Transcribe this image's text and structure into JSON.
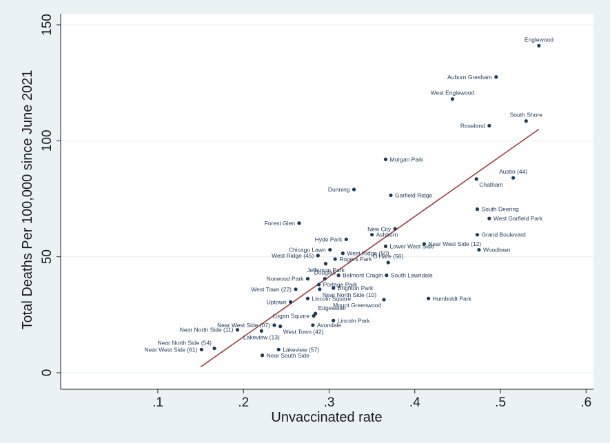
{
  "chart_data": {
    "type": "scatter",
    "xlabel": "Unvaccinated rate",
    "ylabel": "Total Deaths Per 100,000 since June 2021",
    "xlim": [
      0.0,
      0.61
    ],
    "ylim": [
      -2,
      150
    ],
    "x_ticks": [
      0.1,
      0.2,
      0.3,
      0.4,
      0.5,
      0.6
    ],
    "x_tick_labels": [
      ".1",
      ".2",
      ".3",
      ".4",
      ".5",
      ".6"
    ],
    "y_ticks": [
      0,
      50,
      100,
      150
    ],
    "y_tick_labels": [
      "0",
      "50",
      "100",
      "150"
    ],
    "grid": "horizontal",
    "colors": {
      "background": "#eaf2f3",
      "plot_area": "#ffffff",
      "points": "#1a3a5c",
      "fit_line": "#a33a3a",
      "grid": "#e6ecef"
    },
    "fit_line": {
      "x": [
        0.15,
        0.545
      ],
      "y": [
        2.5,
        105
      ]
    },
    "points": [
      {
        "label": "Englewood",
        "x": 0.545,
        "y": 141,
        "label_pos": "above"
      },
      {
        "label": "Auburn Gresham",
        "x": 0.495,
        "y": 127.5,
        "label_pos": "left"
      },
      {
        "label": "West Englewood",
        "x": 0.444,
        "y": 118,
        "label_pos": "above"
      },
      {
        "label": "South Shore",
        "x": 0.53,
        "y": 108.5,
        "label_pos": "above"
      },
      {
        "label": "Roseland",
        "x": 0.487,
        "y": 106.5,
        "label_pos": "left"
      },
      {
        "label": "Morgan Park",
        "x": 0.366,
        "y": 92,
        "label_pos": "right"
      },
      {
        "label": "Austin (44)",
        "x": 0.515,
        "y": 84,
        "label_pos": "above"
      },
      {
        "label": "Chatham",
        "x": 0.472,
        "y": 83.5,
        "label_pos": "below-right"
      },
      {
        "label": "Dunning",
        "x": 0.329,
        "y": 79,
        "label_pos": "left"
      },
      {
        "label": "Garfield Ridge",
        "x": 0.372,
        "y": 76.5,
        "label_pos": "right"
      },
      {
        "label": "South Deering",
        "x": 0.473,
        "y": 70.5,
        "label_pos": "right"
      },
      {
        "label": "West Garfield Park",
        "x": 0.487,
        "y": 66.5,
        "label_pos": "right"
      },
      {
        "label": "Forest Glen",
        "x": 0.265,
        "y": 64.5,
        "label_pos": "left"
      },
      {
        "label": "New City",
        "x": 0.377,
        "y": 62,
        "label_pos": "left"
      },
      {
        "label": "Grand Boulevard",
        "x": 0.473,
        "y": 59.5,
        "label_pos": "right"
      },
      {
        "label": "Ashburn",
        "x": 0.35,
        "y": 59.5,
        "label_pos": "right"
      },
      {
        "label": "Hyde Park",
        "x": 0.32,
        "y": 57.5,
        "label_pos": "left"
      },
      {
        "label": "Near West Side (12)",
        "x": 0.411,
        "y": 55.5,
        "label_pos": "right"
      },
      {
        "label": "Lower West Side",
        "x": 0.366,
        "y": 54.5,
        "label_pos": "right"
      },
      {
        "label": "Woodlawn",
        "x": 0.475,
        "y": 53,
        "label_pos": "right"
      },
      {
        "label": "Chicago Lawn",
        "x": 0.301,
        "y": 53,
        "label_pos": "left"
      },
      {
        "label": "West Ridge (50)",
        "x": 0.316,
        "y": 51.5,
        "label_pos": "right"
      },
      {
        "label": "West Ridge (45)",
        "x": 0.287,
        "y": 50.5,
        "label_pos": "left"
      },
      {
        "label": "Rogers Park",
        "x": 0.307,
        "y": 49,
        "label_pos": "right"
      },
      {
        "label": "O'Hare (56)",
        "x": 0.369,
        "y": 47.5,
        "label_pos": "above"
      },
      {
        "label": "Jefferson Park",
        "x": 0.296,
        "y": 47,
        "label_pos": "below"
      },
      {
        "label": "Belmont Cragin",
        "x": 0.311,
        "y": 42,
        "label_pos": "right"
      },
      {
        "label": "South Lawndale",
        "x": 0.367,
        "y": 42,
        "label_pos": "right"
      },
      {
        "label": "Douglas",
        "x": 0.295,
        "y": 40.5,
        "label_pos": "above"
      },
      {
        "label": "Norwood Park",
        "x": 0.275,
        "y": 40.5,
        "label_pos": "left"
      },
      {
        "label": "Portage Park",
        "x": 0.288,
        "y": 38,
        "label_pos": "right"
      },
      {
        "label": "Brighton Park",
        "x": 0.305,
        "y": 36.5,
        "label_pos": "right"
      },
      {
        "label": "West Town (22)",
        "x": 0.261,
        "y": 36,
        "label_pos": "left"
      },
      {
        "label": "Near North Side (10)",
        "x": 0.289,
        "y": 36,
        "label_pos": "below-right"
      },
      {
        "label": "Lincoln Square",
        "x": 0.275,
        "y": 32,
        "label_pos": "right"
      },
      {
        "label": "Humboldt Park",
        "x": 0.416,
        "y": 32,
        "label_pos": "right"
      },
      {
        "label": "Mount Greenwood",
        "x": 0.364,
        "y": 31.5,
        "label_pos": "below-left"
      },
      {
        "label": "Uptown",
        "x": 0.255,
        "y": 30.5,
        "label_pos": "left"
      },
      {
        "label": "Edgewater",
        "x": 0.284,
        "y": 25.5,
        "label_pos": "above-right"
      },
      {
        "label": "Logan Square",
        "x": 0.282,
        "y": 24.5,
        "label_pos": "left"
      },
      {
        "label": "Lincoln Park",
        "x": 0.305,
        "y": 22.5,
        "label_pos": "right"
      },
      {
        "label": "Near West Side (07)",
        "x": 0.236,
        "y": 20.5,
        "label_pos": "left"
      },
      {
        "label": "Avondale",
        "x": 0.281,
        "y": 20.5,
        "label_pos": "right"
      },
      {
        "label": "West Town (42)",
        "x": 0.243,
        "y": 20,
        "label_pos": "below-right"
      },
      {
        "label": "Near North Side (11)",
        "x": 0.193,
        "y": 18.5,
        "label_pos": "left"
      },
      {
        "label": "Lakeview (13)",
        "x": 0.221,
        "y": 18,
        "label_pos": "below"
      },
      {
        "label": "Near North Side (54)",
        "x": 0.166,
        "y": 10.5,
        "label_pos": "above-left"
      },
      {
        "label": "Near West Side (61)",
        "x": 0.151,
        "y": 10,
        "label_pos": "left"
      },
      {
        "label": "Lakeview (57)",
        "x": 0.241,
        "y": 10,
        "label_pos": "right"
      },
      {
        "label": "Near South Side",
        "x": 0.222,
        "y": 7.5,
        "label_pos": "right"
      }
    ]
  }
}
